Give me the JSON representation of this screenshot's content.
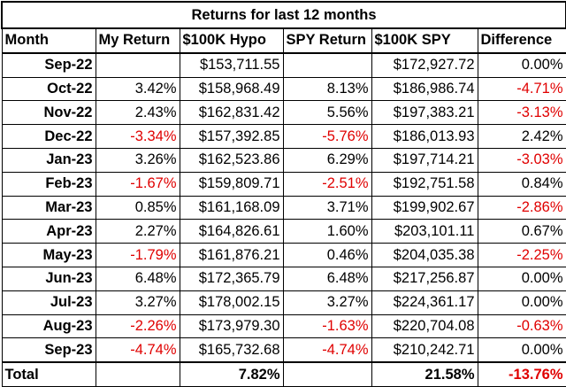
{
  "table": {
    "title": "Returns for last 12 months",
    "columns": [
      "Month",
      "My Return",
      "$100K Hypo",
      "SPY Return",
      "$100K SPY",
      "Difference"
    ],
    "rows": [
      [
        "Sep-22",
        null,
        "$153,711.55",
        null,
        "$172,927.72",
        "0.00%"
      ],
      [
        "Oct-22",
        "3.42%",
        "$158,968.49",
        "8.13%",
        "$186,986.74",
        "-4.71%"
      ],
      [
        "Nov-22",
        "2.43%",
        "$162,831.42",
        "5.56%",
        "$197,383.21",
        "-3.13%"
      ],
      [
        "Dec-22",
        "-3.34%",
        "$157,392.85",
        "-5.76%",
        "$186,013.93",
        "2.42%"
      ],
      [
        "Jan-23",
        "3.26%",
        "$162,523.86",
        "6.29%",
        "$197,714.21",
        "-3.03%"
      ],
      [
        "Feb-23",
        "-1.67%",
        "$159,809.71",
        "-2.51%",
        "$192,751.58",
        "0.84%"
      ],
      [
        "Mar-23",
        "0.85%",
        "$161,168.09",
        "3.71%",
        "$199,902.67",
        "-2.86%"
      ],
      [
        "Apr-23",
        "2.27%",
        "$164,826.61",
        "1.60%",
        "$203,101.11",
        "0.67%"
      ],
      [
        "May-23",
        "-1.79%",
        "$161,876.21",
        "0.46%",
        "$204,035.38",
        "-2.25%"
      ],
      [
        "Jun-23",
        "6.48%",
        "$172,365.79",
        "6.48%",
        "$217,256.87",
        "0.00%"
      ],
      [
        "Jul-23",
        "3.27%",
        "$178,002.15",
        "3.27%",
        "$224,361.17",
        "0.00%"
      ],
      [
        "Aug-23",
        "-2.26%",
        "$173,979.30",
        "-1.63%",
        "$220,704.08",
        "-0.63%"
      ],
      [
        "Sep-23",
        "-4.74%",
        "$165,732.68",
        "-4.74%",
        "$210,242.71",
        "0.00%"
      ]
    ],
    "total": [
      "Total",
      null,
      "7.82%",
      null,
      "21.58%",
      "-13.76%"
    ],
    "negative_color": "#e00000"
  }
}
